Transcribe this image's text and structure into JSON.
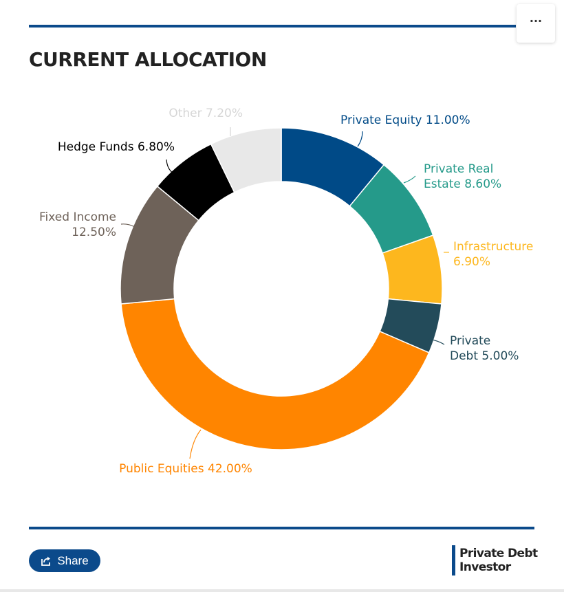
{
  "title": "CURRENT ALLOCATION",
  "menu": {
    "icon": "more-horizontal-icon",
    "label": "···"
  },
  "share": {
    "label": "Share",
    "icon": "share-icon"
  },
  "logo": {
    "line1": "Private Debt",
    "line2": "Investor"
  },
  "colors": {
    "accent": "#0b4a8b"
  },
  "chart_data": {
    "type": "pie",
    "donut": true,
    "slices": [
      {
        "label_lines": [
          "Private Equity 11.00%"
        ],
        "category": "Private Equity",
        "value": 11.0,
        "color": "#004a87"
      },
      {
        "label_lines": [
          "Private Real",
          "Estate 8.60%"
        ],
        "category": "Private Real Estate",
        "value": 8.6,
        "color": "#259a8a"
      },
      {
        "label_lines": [
          "Infrastructure",
          "6.90%"
        ],
        "category": "Infrastructure",
        "value": 6.9,
        "color": "#fdb71e"
      },
      {
        "label_lines": [
          "Private",
          "Debt 5.00%"
        ],
        "category": "Private Debt",
        "value": 5.0,
        "color": "#234b5a"
      },
      {
        "label_lines": [
          "Public Equities 42.00%"
        ],
        "category": "Public Equities",
        "value": 42.0,
        "color": "#ff8500"
      },
      {
        "label_lines": [
          "Fixed Income",
          "12.50%"
        ],
        "category": "Fixed Income",
        "value": 12.5,
        "color": "#6e6259"
      },
      {
        "label_lines": [
          "Hedge Funds 6.80%"
        ],
        "category": "Hedge Funds",
        "value": 6.8,
        "color": "#000000"
      },
      {
        "label_lines": [
          "Other 7.20%"
        ],
        "category": "Other",
        "value": 7.2,
        "color": "#e8e8e8"
      }
    ]
  }
}
